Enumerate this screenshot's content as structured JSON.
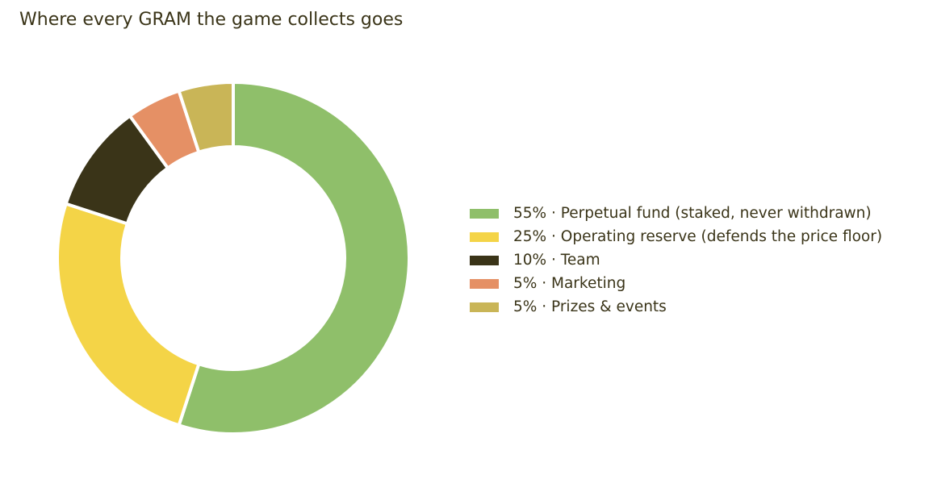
{
  "chart_data": {
    "type": "pie",
    "donut": true,
    "title": "Where every GRAM the game collects goes",
    "start_angle_deg": 90,
    "direction": "clockwise",
    "legend_position": "right",
    "slices": [
      {
        "label": "55% · Perpetual fund (staked, never withdrawn)",
        "value": 55,
        "color": "#8fbf6a"
      },
      {
        "label": "25% · Operating reserve (defends the price floor)",
        "value": 25,
        "color": "#f4d447"
      },
      {
        "label": "10% · Team",
        "value": 10,
        "color": "#3a3418"
      },
      {
        "label": "5% · Marketing",
        "value": 5,
        "color": "#e59065"
      },
      {
        "label": "5% · Prizes & events",
        "value": 5,
        "color": "#c9b557"
      }
    ]
  }
}
